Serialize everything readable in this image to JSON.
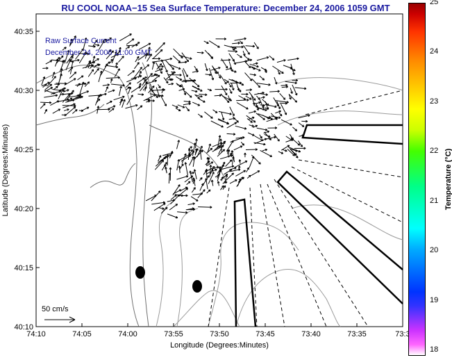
{
  "title": "RU COOL  NOAA−15  Sea Surface Temperature:  December 24, 2006 1059 GMT",
  "map": {
    "xlabel": "Longitude (Degrees:Minutes)",
    "ylabel": "Latitude (Degrees:Minutes)",
    "xticks": [
      "74:10",
      "74:05",
      "74:00",
      "73:55",
      "73:50",
      "73:45",
      "73:40",
      "73:35",
      "73:3"
    ],
    "yticks": [
      "40:35",
      "40:30",
      "40:25",
      "40:20",
      "40:15",
      "40:10"
    ],
    "current_label_1": "Raw Surface Current",
    "current_label_2": "December 24, 2006 11:00 GMT",
    "scale_label": "50 cm/s",
    "colors": {
      "title": "#1a1aa0",
      "vectors": "#000000",
      "contours": "#808080"
    }
  },
  "colorbar": {
    "ticks": [
      "25",
      "24",
      "23",
      "22",
      "21",
      "20",
      "19",
      "18"
    ],
    "label": "Temperature (°C)",
    "range": [
      18,
      25
    ]
  }
}
